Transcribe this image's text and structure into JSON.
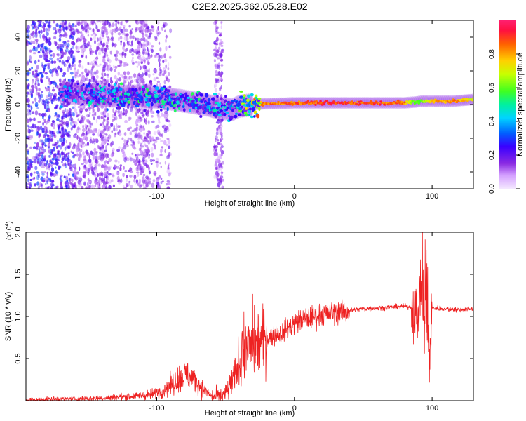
{
  "chart_data": [
    {
      "type": "heatmap",
      "title": "C2E2.2025.362.05.28.E02",
      "xlabel": "Height of straight line (km)",
      "ylabel": "Frequency (Hz)",
      "xlim": [
        -195,
        130
      ],
      "ylim": [
        -50,
        50
      ],
      "xticks": [
        -100,
        0,
        100
      ],
      "yticks": [
        -40,
        -20,
        0,
        20,
        40
      ],
      "colorbar": {
        "label": "Normalized spectral amplitude",
        "range": [
          0,
          1
        ],
        "ticks": [
          "0.0",
          "0.2",
          "0.4",
          "0.6",
          "0.8"
        ],
        "tick_values": [
          0,
          0.2,
          0.4,
          0.6,
          0.8
        ]
      },
      "ridge": {
        "x": [
          -165,
          -150,
          -130,
          -110,
          -95,
          -80,
          -65,
          -55,
          -45,
          -40,
          -30,
          -20,
          0,
          20,
          40,
          60,
          80,
          88,
          92,
          100,
          115,
          130
        ],
        "frequency": [
          7,
          6,
          5,
          5,
          4,
          2,
          0,
          -2,
          -3,
          -1,
          0,
          0.5,
          1,
          1,
          1,
          1,
          1,
          1.5,
          2,
          2,
          2,
          3
        ],
        "amplitude": [
          0.35,
          0.45,
          0.5,
          0.55,
          0.5,
          0.5,
          0.5,
          0.45,
          0.45,
          0.6,
          0.8,
          0.9,
          0.92,
          0.95,
          0.95,
          0.95,
          0.9,
          0.6,
          0.65,
          0.85,
          0.9,
          0.75
        ]
      }
    },
    {
      "type": "line",
      "xlabel": "Height of straight line (km)",
      "ylabel": "SNR (10 * v/v)",
      "scale_label": "(x10",
      "scale_exponent": "4",
      "xlim": [
        -195,
        130
      ],
      "ylim": [
        0,
        2.0
      ],
      "xticks": [
        -100,
        0,
        100
      ],
      "yticks": [
        "0.5",
        "1.0",
        "1.5",
        "2.0"
      ],
      "ytick_values": [
        0.5,
        1.0,
        1.5,
        2.0
      ],
      "series": [
        {
          "name": "SNR",
          "color": "#ee2222",
          "x": [
            -195,
            -170,
            -140,
            -120,
            -105,
            -95,
            -90,
            -85,
            -80,
            -75,
            -70,
            -65,
            -60,
            -55,
            -50,
            -45,
            -40,
            -35,
            -30,
            -25,
            -20,
            -15,
            -10,
            -5,
            0,
            10,
            20,
            30,
            40,
            50,
            60,
            70,
            80,
            85,
            90,
            92,
            94,
            96,
            98,
            100,
            110,
            120,
            130
          ],
          "values": [
            0.01,
            0.02,
            0.03,
            0.05,
            0.07,
            0.12,
            0.18,
            0.25,
            0.3,
            0.28,
            0.2,
            0.12,
            0.05,
            0.04,
            0.08,
            0.22,
            0.45,
            0.62,
            0.68,
            0.7,
            0.74,
            0.78,
            0.8,
            0.86,
            0.92,
            0.98,
            1.02,
            1.05,
            1.07,
            1.09,
            1.1,
            1.11,
            1.12,
            1.11,
            1.0,
            1.4,
            0.8,
            1.3,
            0.4,
            1.1,
            1.09,
            1.08,
            1.09
          ]
        }
      ]
    }
  ]
}
